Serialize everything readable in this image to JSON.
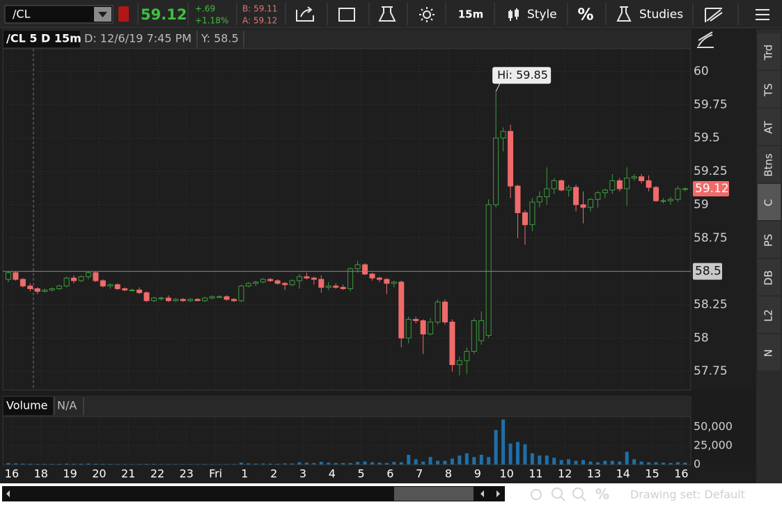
{
  "toolbar": {
    "symbol": "/CL",
    "last": "59.12",
    "change": "+.69",
    "change_pct": "+1.18%",
    "bid": "B: 59.11",
    "ask": "A: 59.12",
    "interval": "15m",
    "style": "Style",
    "percent": "%",
    "studies": "Studies"
  },
  "header": {
    "title": "/CL 5 D 15m",
    "date": "D: 12/6/19 7:45 PM",
    "y": "Y: 58.5"
  },
  "volume_header": {
    "label": "Volume",
    "value": "N/A"
  },
  "side_tabs": [
    "Trd",
    "TS",
    "AT",
    "Btns",
    "C",
    "PS",
    "DB",
    "L2",
    "N"
  ],
  "footer": {
    "drawing_set": "Drawing set: Default",
    "percent": "%"
  },
  "chart_data": [
    {
      "type": "candlestick",
      "annotation": "Hi: 59.85",
      "crosshair_y": 58.5,
      "up_color": "#3e9b3e",
      "down_color": "#f06a6a",
      "grid": true,
      "ylim": [
        57.61,
        60.17
      ],
      "yticks": [
        57.75,
        58,
        58.25,
        58.75,
        59,
        59.25,
        59.5,
        59.75,
        60
      ],
      "categories": [
        "16",
        null,
        null,
        null,
        "18",
        null,
        null,
        null,
        "19",
        null,
        null,
        null,
        "20",
        null,
        null,
        null,
        "21",
        null,
        null,
        null,
        "22",
        null,
        null,
        null,
        "23",
        null,
        null,
        null,
        "Fri",
        null,
        null,
        null,
        "1",
        null,
        null,
        null,
        "2",
        null,
        null,
        null,
        "3",
        null,
        null,
        null,
        "4",
        null,
        null,
        null,
        "5",
        null,
        null,
        null,
        "6",
        null,
        null,
        null,
        "7",
        null,
        null,
        null,
        "8",
        null,
        null,
        null,
        "9",
        null,
        null,
        null,
        "10",
        null,
        null,
        null,
        "11",
        null,
        null,
        null,
        "12",
        null,
        null,
        null,
        "13",
        null,
        null,
        null,
        "14",
        null,
        null,
        null,
        "15",
        null,
        null,
        null,
        "16",
        null
      ],
      "ohlc": [
        [
          58.44,
          58.5,
          58.42,
          58.49
        ],
        [
          58.49,
          58.5,
          58.43,
          58.44
        ],
        [
          58.44,
          58.45,
          58.38,
          58.39
        ],
        [
          58.39,
          58.41,
          58.35,
          58.37
        ],
        [
          58.37,
          58.38,
          58.33,
          58.35
        ],
        [
          58.35,
          58.37,
          58.34,
          58.36
        ],
        [
          58.36,
          58.38,
          58.35,
          58.37
        ],
        [
          58.37,
          58.4,
          58.36,
          58.39
        ],
        [
          58.39,
          58.46,
          58.38,
          58.45
        ],
        [
          58.45,
          58.47,
          58.41,
          58.43
        ],
        [
          58.43,
          58.47,
          58.42,
          58.46
        ],
        [
          58.46,
          58.5,
          58.44,
          58.49
        ],
        [
          58.49,
          58.5,
          58.42,
          58.43
        ],
        [
          58.43,
          58.44,
          58.38,
          58.39
        ],
        [
          58.39,
          58.41,
          58.37,
          58.4
        ],
        [
          58.4,
          58.41,
          58.36,
          58.37
        ],
        [
          58.37,
          58.38,
          58.35,
          58.36
        ],
        [
          58.36,
          58.37,
          58.35,
          58.36
        ],
        [
          58.36,
          58.38,
          58.33,
          58.34
        ],
        [
          58.34,
          58.35,
          58.27,
          58.28
        ],
        [
          58.28,
          58.31,
          58.27,
          58.3
        ],
        [
          58.3,
          58.31,
          58.28,
          58.3
        ],
        [
          58.3,
          58.32,
          58.27,
          58.28
        ],
        [
          58.28,
          58.3,
          58.27,
          58.29
        ],
        [
          58.29,
          58.3,
          58.27,
          58.28
        ],
        [
          58.28,
          58.3,
          58.27,
          58.29
        ],
        [
          58.29,
          58.3,
          58.28,
          58.28
        ],
        [
          58.28,
          58.31,
          58.27,
          58.3
        ],
        [
          58.3,
          58.32,
          58.29,
          58.31
        ],
        [
          58.31,
          58.32,
          58.3,
          58.31
        ],
        [
          58.31,
          58.32,
          58.28,
          58.29
        ],
        [
          58.29,
          58.3,
          58.27,
          58.28
        ],
        [
          58.28,
          58.4,
          58.27,
          58.39
        ],
        [
          58.39,
          58.42,
          58.38,
          58.41
        ],
        [
          58.41,
          58.43,
          58.39,
          58.42
        ],
        [
          58.42,
          58.45,
          58.41,
          58.44
        ],
        [
          58.44,
          58.45,
          58.42,
          58.43
        ],
        [
          58.43,
          58.44,
          58.4,
          58.41
        ],
        [
          58.41,
          58.42,
          58.36,
          58.4
        ],
        [
          58.4,
          58.44,
          58.39,
          58.43
        ],
        [
          58.43,
          58.48,
          58.37,
          58.46
        ],
        [
          58.46,
          58.49,
          58.44,
          58.45
        ],
        [
          58.45,
          58.46,
          58.4,
          58.44
        ],
        [
          58.44,
          58.47,
          58.34,
          58.38
        ],
        [
          58.38,
          58.42,
          58.36,
          58.39
        ],
        [
          58.39,
          58.41,
          58.37,
          58.38
        ],
        [
          58.38,
          58.4,
          58.36,
          58.37
        ],
        [
          58.37,
          58.53,
          58.35,
          58.52
        ],
        [
          58.52,
          58.58,
          58.49,
          58.55
        ],
        [
          58.55,
          58.56,
          58.47,
          58.48
        ],
        [
          58.48,
          58.49,
          58.43,
          58.45
        ],
        [
          58.45,
          58.46,
          58.42,
          58.44
        ],
        [
          58.44,
          58.45,
          58.33,
          58.41
        ],
        [
          58.41,
          58.43,
          58.38,
          58.42
        ],
        [
          58.42,
          58.43,
          57.93,
          58.0
        ],
        [
          58.0,
          58.16,
          57.96,
          58.14
        ],
        [
          58.14,
          58.16,
          58.11,
          58.13
        ],
        [
          58.13,
          58.14,
          57.88,
          58.03
        ],
        [
          58.03,
          58.15,
          58.02,
          58.12
        ],
        [
          58.12,
          58.29,
          58.1,
          58.27
        ],
        [
          58.27,
          58.29,
          58.1,
          58.12
        ],
        [
          58.12,
          58.14,
          57.75,
          57.8
        ],
        [
          57.8,
          57.86,
          57.72,
          57.83
        ],
        [
          57.83,
          57.93,
          57.73,
          57.9
        ],
        [
          57.9,
          58.15,
          57.88,
          58.13
        ],
        [
          57.98,
          58.2,
          57.95,
          58.13
        ],
        [
          58.02,
          59.04,
          58.0,
          59.0
        ],
        [
          59.0,
          59.85,
          58.98,
          59.5
        ],
        [
          59.5,
          59.58,
          59.4,
          59.55
        ],
        [
          59.55,
          59.6,
          59.05,
          59.14
        ],
        [
          59.14,
          59.15,
          58.75,
          58.94
        ],
        [
          58.94,
          58.96,
          58.7,
          58.85
        ],
        [
          58.85,
          59.05,
          58.8,
          59.02
        ],
        [
          59.02,
          59.1,
          58.98,
          59.06
        ],
        [
          59.06,
          59.28,
          59.0,
          59.12
        ],
        [
          59.12,
          59.2,
          59.08,
          59.18
        ],
        [
          59.18,
          59.19,
          59.1,
          59.11
        ],
        [
          59.11,
          59.15,
          59.06,
          59.13
        ],
        [
          59.13,
          59.15,
          58.95,
          59.0
        ],
        [
          59.0,
          59.1,
          58.86,
          58.98
        ],
        [
          58.98,
          59.05,
          58.95,
          59.04
        ],
        [
          59.04,
          59.1,
          58.98,
          59.09
        ],
        [
          59.09,
          59.12,
          59.05,
          59.11
        ],
        [
          59.11,
          59.23,
          59.08,
          59.18
        ],
        [
          59.18,
          59.2,
          59.1,
          59.12
        ],
        [
          59.12,
          59.28,
          58.99,
          59.2
        ],
        [
          59.2,
          59.23,
          59.18,
          59.21
        ],
        [
          59.21,
          59.23,
          59.16,
          59.18
        ],
        [
          59.18,
          59.22,
          59.1,
          59.13
        ],
        [
          59.13,
          59.14,
          59.02,
          59.03
        ],
        [
          59.03,
          59.05,
          59.01,
          59.03
        ],
        [
          59.03,
          59.06,
          59.0,
          59.04
        ],
        [
          59.04,
          59.14,
          59.02,
          59.12
        ],
        [
          59.12,
          59.13,
          59.1,
          59.12
        ]
      ]
    },
    {
      "type": "bar",
      "color": "#1f6fa8",
      "ylim": [
        0,
        64000
      ],
      "yticks": [
        0,
        {
          "value": 25000,
          "label": "25,000"
        },
        {
          "value": 50000,
          "label": "50,000"
        }
      ],
      "values": [
        2000,
        1500,
        1200,
        1000,
        900,
        800,
        800,
        900,
        1200,
        1000,
        1100,
        1300,
        1000,
        900,
        800,
        700,
        700,
        600,
        700,
        900,
        800,
        600,
        700,
        600,
        600,
        500,
        600,
        700,
        600,
        500,
        600,
        700,
        2500,
        1500,
        1200,
        1300,
        1100,
        1000,
        1500,
        1400,
        3000,
        2500,
        2000,
        3500,
        2500,
        2000,
        2000,
        2000,
        3500,
        4000,
        3000,
        2500,
        2000,
        3500,
        3000,
        13000,
        7000,
        4000,
        10000,
        5000,
        5000,
        8000,
        12000,
        15000,
        10000,
        13000,
        10000,
        46000,
        60000,
        28000,
        30000,
        27000,
        15000,
        12000,
        12000,
        9000,
        6000,
        7000,
        5000,
        6000,
        4000,
        3000,
        5000,
        5000,
        4000,
        17000,
        7000,
        4000,
        3000,
        3000,
        2500,
        2000,
        3000,
        2500
      ]
    }
  ]
}
